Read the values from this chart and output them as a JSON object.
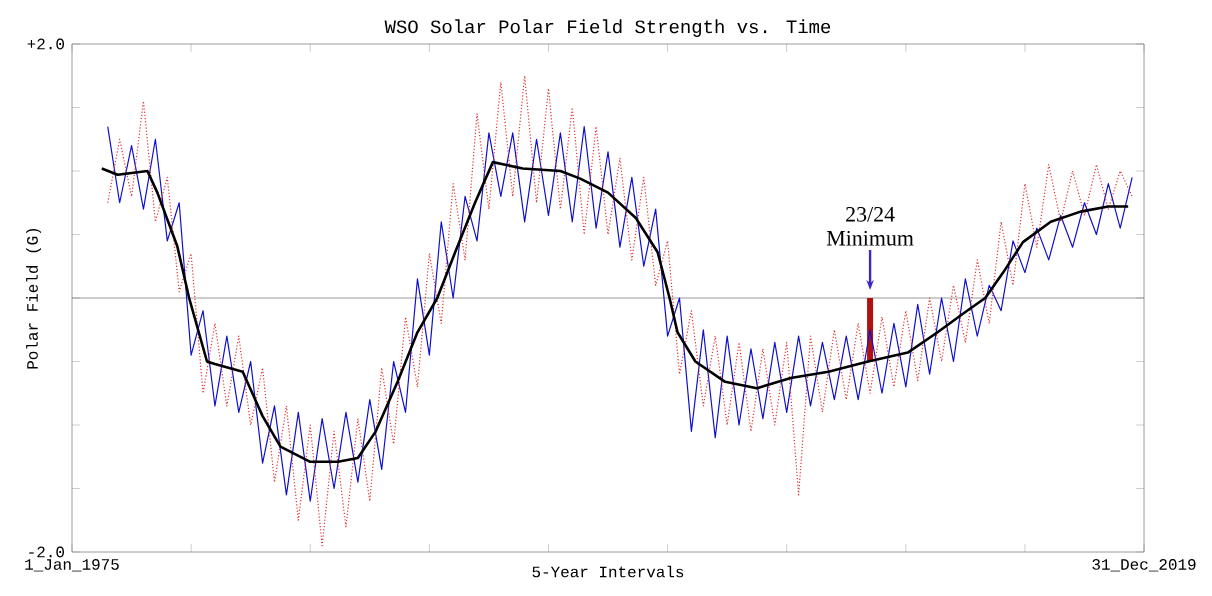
{
  "chart_data": {
    "type": "line",
    "title": "WSO Solar Polar Field Strength vs. Time",
    "xlabel": "5-Year Intervals",
    "ylabel": "Polar Field (G)",
    "xlim": [
      "1975-01-01",
      "2019-12-31"
    ],
    "ylim": [
      -2,
      2
    ],
    "xticks": [
      {
        "value": "1975-01-01",
        "label": "1_Jan_1975"
      },
      {
        "value": "1980-01-01",
        "label": null
      },
      {
        "value": "1985-01-01",
        "label": null
      },
      {
        "value": "1990-01-01",
        "label": null
      },
      {
        "value": "1995-01-01",
        "label": null
      },
      {
        "value": "2000-01-01",
        "label": null
      },
      {
        "value": "2005-01-01",
        "label": null
      },
      {
        "value": "2010-01-01",
        "label": null
      },
      {
        "value": "2015-01-01",
        "label": null
      },
      {
        "value": "2019-12-31",
        "label": "31_Dec_2019"
      }
    ],
    "yticks": [
      {
        "value": -2,
        "label": "-2.0"
      },
      {
        "value": -1.5,
        "label": null
      },
      {
        "value": -1,
        "label": null
      },
      {
        "value": -0.5,
        "label": null
      },
      {
        "value": 0,
        "label": null
      },
      {
        "value": 0.5,
        "label": null
      },
      {
        "value": 1,
        "label": null
      },
      {
        "value": 1.5,
        "label": null
      },
      {
        "value": 2,
        "label": "+2.0"
      }
    ],
    "x": [
      "1976-07",
      "1977-01",
      "1977-07",
      "1978-01",
      "1978-07",
      "1979-01",
      "1979-07",
      "1980-01",
      "1980-07",
      "1981-01",
      "1981-07",
      "1982-01",
      "1982-07",
      "1983-01",
      "1983-07",
      "1984-01",
      "1984-07",
      "1985-01",
      "1985-07",
      "1986-01",
      "1986-07",
      "1987-01",
      "1987-07",
      "1988-01",
      "1988-07",
      "1989-01",
      "1989-07",
      "1990-01",
      "1990-07",
      "1991-01",
      "1991-07",
      "1992-01",
      "1992-07",
      "1993-01",
      "1993-07",
      "1994-01",
      "1994-07",
      "1995-01",
      "1995-07",
      "1996-01",
      "1996-07",
      "1997-01",
      "1997-07",
      "1998-01",
      "1998-07",
      "1999-01",
      "1999-07",
      "2000-01",
      "2000-07",
      "2001-01",
      "2001-07",
      "2002-01",
      "2002-07",
      "2003-01",
      "2003-07",
      "2004-01",
      "2004-07",
      "2005-01",
      "2005-07",
      "2006-01",
      "2006-07",
      "2007-01",
      "2007-07",
      "2008-01",
      "2008-07",
      "2009-01",
      "2009-07",
      "2010-01",
      "2010-07",
      "2011-01",
      "2011-07",
      "2012-01",
      "2012-07",
      "2013-01",
      "2013-07",
      "2014-01",
      "2014-07",
      "2015-01",
      "2015-07",
      "2016-01",
      "2016-07",
      "2017-01",
      "2017-07",
      "2018-01",
      "2018-07",
      "2019-01",
      "2019-07"
    ],
    "series": [
      {
        "color": "#1010cc",
        "line_style": "solid",
        "values": [
          1.35,
          0.75,
          1.2,
          0.7,
          1.25,
          0.45,
          0.75,
          -0.45,
          -0.1,
          -0.85,
          -0.3,
          -0.9,
          -0.5,
          -1.3,
          -0.85,
          -1.55,
          -0.9,
          -1.6,
          -0.95,
          -1.5,
          -0.9,
          -1.45,
          -0.8,
          -1.35,
          -0.5,
          -0.9,
          0.15,
          -0.45,
          0.6,
          0.0,
          0.8,
          0.45,
          1.3,
          0.8,
          1.3,
          0.6,
          1.25,
          0.65,
          1.3,
          0.6,
          1.35,
          0.55,
          1.15,
          0.4,
          0.95,
          0.25,
          0.7,
          -0.3,
          0.0,
          -1.05,
          -0.25,
          -1.1,
          -0.3,
          -1.0,
          -0.4,
          -0.95,
          -0.35,
          -0.9,
          -0.3,
          -0.85,
          -0.35,
          -0.8,
          -0.3,
          -0.8,
          -0.25,
          -0.75,
          -0.2,
          -0.7,
          -0.05,
          -0.6,
          0.0,
          -0.5,
          0.15,
          -0.3,
          0.1,
          -0.1,
          0.45,
          0.2,
          0.55,
          0.3,
          0.65,
          0.4,
          0.75,
          0.5,
          0.9,
          0.55,
          0.95
        ]
      },
      {
        "color": "#e03030",
        "line_style": "dotted",
        "values": [
          0.75,
          1.25,
          0.8,
          1.55,
          0.6,
          0.95,
          0.05,
          0.35,
          -0.75,
          -0.2,
          -0.85,
          -0.3,
          -1.0,
          -0.55,
          -1.45,
          -0.85,
          -1.75,
          -1.0,
          -1.95,
          -1.05,
          -1.8,
          -0.95,
          -1.6,
          -0.55,
          -1.15,
          -0.15,
          -0.7,
          0.35,
          -0.2,
          0.9,
          0.3,
          1.45,
          0.7,
          1.7,
          0.8,
          1.75,
          0.75,
          1.65,
          0.7,
          1.5,
          0.5,
          1.35,
          0.5,
          1.1,
          0.3,
          0.95,
          0.1,
          0.45,
          -0.6,
          -0.1,
          -0.85,
          -0.3,
          -1.0,
          -0.35,
          -1.05,
          -0.4,
          -1.0,
          -0.35,
          -1.55,
          -0.3,
          -0.9,
          -0.25,
          -0.8,
          -0.2,
          -0.75,
          -0.15,
          -0.7,
          -0.1,
          -0.65,
          0.0,
          -0.5,
          0.1,
          -0.35,
          0.3,
          -0.2,
          0.6,
          0.1,
          0.9,
          0.4,
          1.05,
          0.6,
          1.0,
          0.65,
          1.05,
          0.7,
          1.0,
          0.8
        ]
      },
      {
        "color": "#000000",
        "line_style": "solid",
        "x": [
          "1976-04",
          "1976-12",
          "1978-03",
          "1978-08",
          "1979-06",
          "1979-12",
          "1980-09",
          "1981-01",
          "1982-03",
          "1983-01",
          "1983-10",
          "1985-01",
          "1986-03",
          "1987-01",
          "1987-10",
          "1988-09",
          "1989-07",
          "1990-05",
          "1991-02",
          "1991-12",
          "1992-09",
          "1993-12",
          "1995-07",
          "1996-05",
          "1997-07",
          "1998-09",
          "1999-08",
          "2000-02",
          "2000-06",
          "2001-03",
          "2002-06",
          "2003-10",
          "2005-03",
          "2006-10",
          "2008-06",
          "2010-02",
          "2011-05",
          "2012-07",
          "2013-05",
          "2014-02",
          "2014-12",
          "2016-02",
          "2017-05",
          "2018-07",
          "2019-05"
        ],
        "values": [
          1.02,
          0.97,
          1.0,
          0.83,
          0.41,
          0.0,
          -0.5,
          -0.52,
          -0.58,
          -0.93,
          -1.17,
          -1.29,
          -1.29,
          -1.26,
          -1.05,
          -0.66,
          -0.27,
          0.0,
          0.36,
          0.75,
          1.07,
          1.02,
          1.0,
          0.94,
          0.83,
          0.63,
          0.36,
          0.0,
          -0.27,
          -0.5,
          -0.66,
          -0.71,
          -0.63,
          -0.58,
          -0.5,
          -0.43,
          -0.27,
          -0.11,
          0.0,
          0.2,
          0.44,
          0.6,
          0.68,
          0.72,
          0.72
        ]
      },
      {
        "type": "bar",
        "color": "#b01010",
        "x": [
          "2008-07"
        ],
        "values": [
          -0.5
        ]
      }
    ],
    "ref_lines": [
      {
        "axis": "y",
        "value": 0,
        "color": "#808080"
      }
    ],
    "annotations": [
      {
        "text": "23/24 Minimum",
        "x": "2008-07",
        "y": 0
      }
    ]
  }
}
